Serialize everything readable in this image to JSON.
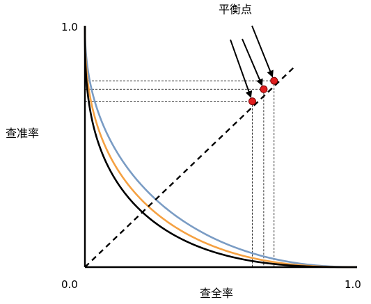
{
  "chart_data": {
    "type": "line",
    "title": "",
    "xlabel": "查全率",
    "ylabel": "查准率",
    "xlim": [
      0,
      1
    ],
    "ylim": [
      0,
      1
    ],
    "tick_labels": {
      "origin": "0.0",
      "x_end": "1.0",
      "y_end": "1.0"
    },
    "grid": false,
    "legend": "none",
    "series": [
      {
        "key": "blue",
        "color": "#7a9cc4",
        "exponent": 2.2
      },
      {
        "key": "orange",
        "color": "#f5a142",
        "exponent": 2.5
      },
      {
        "key": "black",
        "color": "#000000",
        "exponent": 2.8
      }
    ],
    "diagonal": {
      "from": [
        0,
        0
      ],
      "to": [
        0.77,
        0.83
      ],
      "style": "dashed"
    },
    "break_even_points": [
      {
        "x": 0.615,
        "y": 0.687,
        "color": "#e01e1e"
      },
      {
        "x": 0.657,
        "y": 0.737,
        "color": "#e01e1e"
      },
      {
        "x": 0.695,
        "y": 0.772,
        "color": "#e01e1e"
      }
    ],
    "annotation": {
      "text": "平衡点",
      "color": "#000000"
    }
  }
}
